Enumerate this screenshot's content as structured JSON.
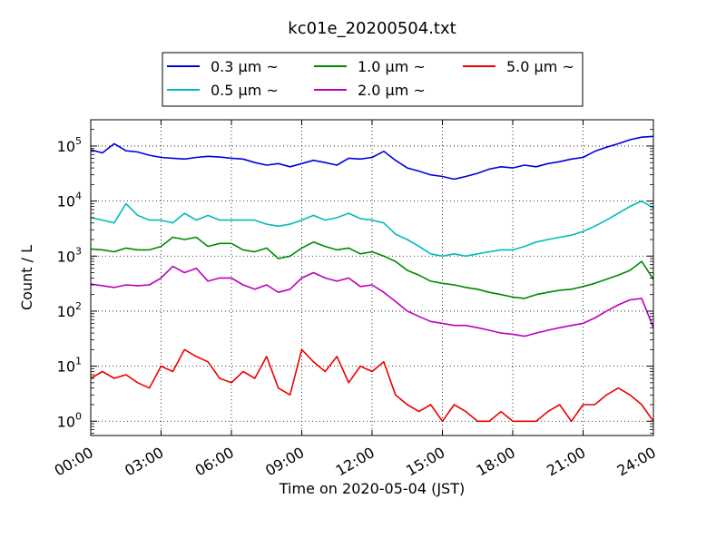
{
  "chart_data": {
    "type": "line",
    "title": "kc01e_20200504.txt",
    "xlabel": "Time on 2020-05-04 (JST)",
    "ylabel": "Count / L",
    "yscale": "log",
    "ylim": [
      0.55,
      300000
    ],
    "xlim": [
      0,
      24
    ],
    "grid": true,
    "legend_position": "top-center",
    "x_ticks": [
      {
        "value": 0,
        "label": "00:00"
      },
      {
        "value": 3,
        "label": "03:00"
      },
      {
        "value": 6,
        "label": "06:00"
      },
      {
        "value": 9,
        "label": "09:00"
      },
      {
        "value": 12,
        "label": "12:00"
      },
      {
        "value": 15,
        "label": "15:00"
      },
      {
        "value": 18,
        "label": "18:00"
      },
      {
        "value": 21,
        "label": "21:00"
      },
      {
        "value": 24,
        "label": "24:00"
      }
    ],
    "y_ticks": [
      {
        "value": 1,
        "base": "10",
        "exp": "0"
      },
      {
        "value": 10,
        "base": "10",
        "exp": "1"
      },
      {
        "value": 100,
        "base": "10",
        "exp": "2"
      },
      {
        "value": 1000,
        "base": "10",
        "exp": "3"
      },
      {
        "value": 10000,
        "base": "10",
        "exp": "4"
      },
      {
        "value": 100000,
        "base": "10",
        "exp": "5"
      }
    ],
    "series": [
      {
        "name": "0.3 μm ~",
        "color": "#0000dd",
        "x": [
          0,
          0.5,
          1,
          1.5,
          2,
          2.5,
          3,
          3.5,
          4,
          4.5,
          5,
          5.5,
          6,
          6.5,
          7,
          7.5,
          8,
          8.5,
          9,
          9.5,
          10,
          10.5,
          11,
          11.5,
          12,
          12.5,
          13,
          13.5,
          14,
          14.5,
          15,
          15.5,
          16,
          16.5,
          17,
          17.5,
          18,
          18.5,
          19,
          19.5,
          20,
          20.5,
          21,
          21.5,
          22,
          22.5,
          23,
          23.5,
          24
        ],
        "values": [
          85000,
          75000,
          110000,
          82000,
          78000,
          68000,
          62000,
          60000,
          58000,
          62000,
          65000,
          63000,
          60000,
          58000,
          50000,
          45000,
          48000,
          42000,
          48000,
          55000,
          50000,
          45000,
          60000,
          58000,
          62000,
          80000,
          55000,
          40000,
          35000,
          30000,
          28000,
          25000,
          28000,
          32000,
          38000,
          42000,
          40000,
          45000,
          42000,
          48000,
          52000,
          58000,
          62000,
          80000,
          95000,
          110000,
          130000,
          145000,
          150000
        ]
      },
      {
        "name": "0.5 μm ~",
        "color": "#00bbbb",
        "x": [
          0,
          0.5,
          1,
          1.5,
          2,
          2.5,
          3,
          3.5,
          4,
          4.5,
          5,
          5.5,
          6,
          6.5,
          7,
          7.5,
          8,
          8.5,
          9,
          9.5,
          10,
          10.5,
          11,
          11.5,
          12,
          12.5,
          13,
          13.5,
          14,
          14.5,
          15,
          15.5,
          16,
          16.5,
          17,
          17.5,
          18,
          18.5,
          19,
          19.5,
          20,
          20.5,
          21,
          21.5,
          22,
          22.5,
          23,
          23.5,
          24
        ],
        "values": [
          5000,
          4500,
          4000,
          9000,
          5500,
          4500,
          4500,
          4000,
          6000,
          4500,
          5500,
          4500,
          4500,
          4500,
          4500,
          3800,
          3500,
          3800,
          4500,
          5500,
          4500,
          5000,
          6000,
          4800,
          4500,
          4000,
          2500,
          2000,
          1500,
          1100,
          1000,
          1100,
          1000,
          1100,
          1200,
          1300,
          1300,
          1500,
          1800,
          2000,
          2200,
          2400,
          2800,
          3500,
          4500,
          6000,
          8000,
          10000,
          7500
        ]
      },
      {
        "name": "1.0 μm ~",
        "color": "#008800",
        "x": [
          0,
          0.5,
          1,
          1.5,
          2,
          2.5,
          3,
          3.5,
          4,
          4.5,
          5,
          5.5,
          6,
          6.5,
          7,
          7.5,
          8,
          8.5,
          9,
          9.5,
          10,
          10.5,
          11,
          11.5,
          12,
          12.5,
          13,
          13.5,
          14,
          14.5,
          15,
          15.5,
          16,
          16.5,
          17,
          17.5,
          18,
          18.5,
          19,
          19.5,
          20,
          20.5,
          21,
          21.5,
          22,
          22.5,
          23,
          23.5,
          24
        ],
        "values": [
          1350,
          1300,
          1200,
          1400,
          1300,
          1300,
          1500,
          2200,
          2000,
          2200,
          1500,
          1700,
          1700,
          1300,
          1200,
          1400,
          900,
          1000,
          1400,
          1800,
          1500,
          1300,
          1400,
          1100,
          1200,
          1000,
          800,
          550,
          450,
          350,
          320,
          300,
          270,
          250,
          220,
          200,
          180,
          170,
          200,
          220,
          240,
          250,
          280,
          320,
          380,
          450,
          550,
          800,
          380
        ]
      },
      {
        "name": "2.0 μm ~",
        "color": "#bb00bb",
        "x": [
          0,
          0.5,
          1,
          1.5,
          2,
          2.5,
          3,
          3.5,
          4,
          4.5,
          5,
          5.5,
          6,
          6.5,
          7,
          7.5,
          8,
          8.5,
          9,
          9.5,
          10,
          10.5,
          11,
          11.5,
          12,
          12.5,
          13,
          13.5,
          14,
          14.5,
          15,
          15.5,
          16,
          16.5,
          17,
          17.5,
          18,
          18.5,
          19,
          19.5,
          20,
          20.5,
          21,
          21.5,
          22,
          22.5,
          23,
          23.5,
          24
        ],
        "values": [
          310,
          290,
          270,
          300,
          290,
          300,
          400,
          650,
          500,
          600,
          350,
          400,
          400,
          300,
          250,
          300,
          220,
          250,
          400,
          500,
          400,
          350,
          400,
          280,
          300,
          220,
          150,
          100,
          80,
          65,
          60,
          55,
          55,
          50,
          45,
          40,
          38,
          35,
          40,
          45,
          50,
          55,
          60,
          75,
          100,
          130,
          160,
          170,
          50
        ]
      },
      {
        "name": "5.0 μm ~",
        "color": "#ee0000",
        "x": [
          0,
          0.5,
          1,
          1.5,
          2,
          2.5,
          3,
          3.5,
          4,
          4.5,
          5,
          5.5,
          6,
          6.5,
          7,
          7.5,
          8,
          8.5,
          9,
          9.5,
          10,
          10.5,
          11,
          11.5,
          12,
          12.5,
          13,
          13.5,
          14,
          14.5,
          15,
          15.5,
          16,
          16.5,
          17,
          17.5,
          18,
          18.5,
          19,
          19.5,
          20,
          20.5,
          21,
          21.5,
          22,
          22.5,
          23,
          23.5,
          24
        ],
        "values": [
          6,
          8,
          6,
          7,
          5,
          4,
          10,
          8,
          20,
          15,
          12,
          6,
          5,
          8,
          6,
          15,
          4,
          3,
          20,
          12,
          8,
          15,
          5,
          10,
          8,
          12,
          3,
          2,
          1.5,
          2,
          1,
          2,
          1.5,
          1,
          1,
          1.5,
          1,
          1,
          1,
          1.5,
          2,
          1,
          2,
          2,
          3,
          4,
          3,
          2,
          1
        ]
      }
    ]
  }
}
